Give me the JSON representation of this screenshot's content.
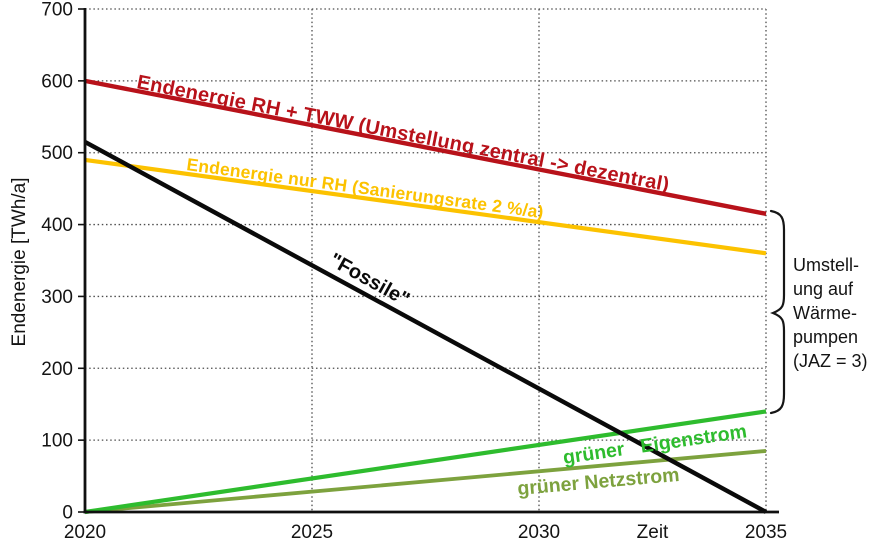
{
  "chart_data": {
    "type": "line",
    "title": "",
    "xlabel": "Zeit",
    "ylabel": "Endenergie [TWh/a]",
    "x": [
      2020,
      2035
    ],
    "xlim": [
      2020,
      2035
    ],
    "ylim": [
      0,
      700
    ],
    "x_ticks": [
      2020,
      2025,
      2030,
      2035
    ],
    "y_ticks": [
      0,
      100,
      200,
      300,
      400,
      500,
      600,
      700
    ],
    "grid": "dotted",
    "legend_position": "inline-labels",
    "series": [
      {
        "name": "Endenergie RH + TWW (Umstellung zentral -> dezentral)",
        "color": "#b8121a",
        "values": [
          600,
          415
        ]
      },
      {
        "name": "Endenergie nur RH (Sanierungsrate 2 %/a)",
        "color": "#fcc200",
        "values": [
          490,
          360
        ]
      },
      {
        "name": "\"Fossile\"",
        "color": "#0a0a0a",
        "values": [
          515,
          0
        ]
      },
      {
        "name": "grüner Netzstrom",
        "color": "#7da23e",
        "values": [
          0,
          85
        ]
      },
      {
        "name": "grüner Eigenstrom",
        "color": "#2ebc2e",
        "values": [
          0,
          140
        ]
      }
    ],
    "annotation": {
      "text": "Umstellung auf Wärmepumpen (JAZ = 3)",
      "lines": [
        "Umstell-",
        "ung auf",
        "Wärme-",
        "pumpen",
        "(JAZ = 3)"
      ]
    }
  }
}
